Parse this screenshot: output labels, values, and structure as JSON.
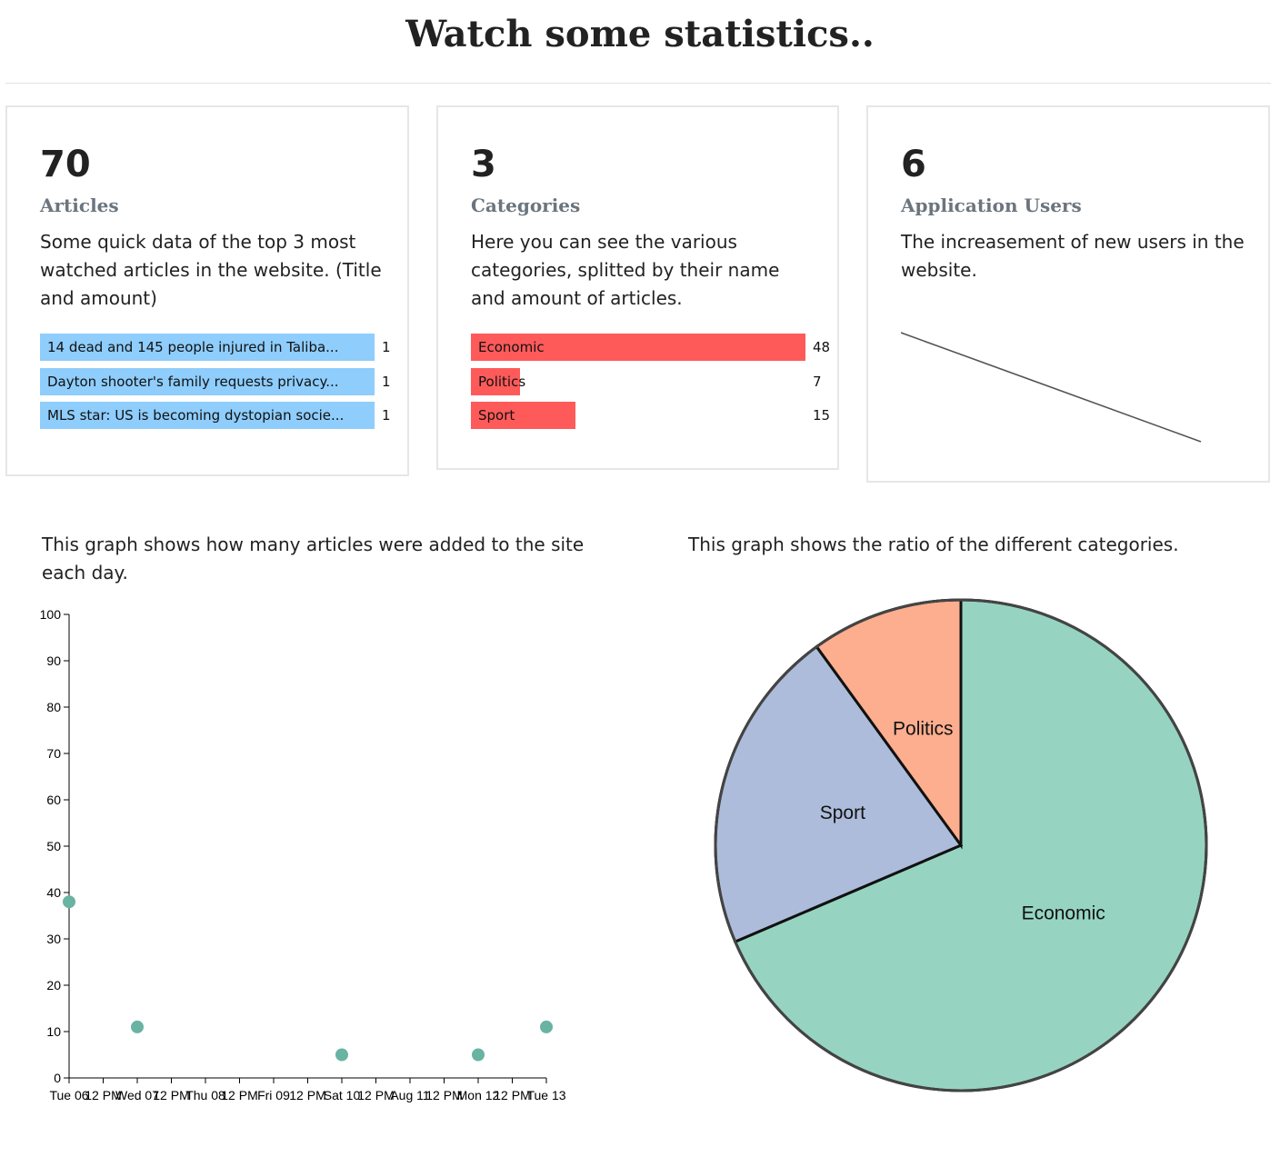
{
  "page": {
    "title": "Watch some statistics.."
  },
  "cards": [
    {
      "number": "70",
      "label": "Articles",
      "description": "Some quick data of the top 3 most watched articles in the website. (Title and amount)",
      "bars": [
        {
          "label": "14 dead and 145 people injured in Taliba...",
          "value": 1
        },
        {
          "label": "Dayton shooter's family requests privacy...",
          "value": 1
        },
        {
          "label": "MLS star: US is becoming dystopian socie...",
          "value": 1
        }
      ],
      "bar_color": "#8ecdfc"
    },
    {
      "number": "3",
      "label": "Categories",
      "description": "Here you can see the various categories, splitted by their name and amount of articles.",
      "bars": [
        {
          "label": "Economic",
          "value": 48
        },
        {
          "label": "Politics",
          "value": 7
        },
        {
          "label": "Sport",
          "value": 15
        }
      ],
      "bar_color": "#ff5a5a"
    },
    {
      "number": "6",
      "label": "Application Users",
      "description": "The increasement of new users in the website."
    }
  ],
  "graphs": {
    "scatter_desc": "This graph shows how many articles were added to the site each day.",
    "pie_desc": "This graph shows the ratio of the different categories."
  },
  "chart_data": [
    {
      "type": "bar",
      "orientation": "horizontal",
      "categories": [
        "14 dead and 145 people injured in Taliba...",
        "Dayton shooter's family requests privacy...",
        "MLS star: US is becoming dystopian socie..."
      ],
      "values": [
        1,
        1,
        1
      ]
    },
    {
      "type": "bar",
      "orientation": "horizontal",
      "categories": [
        "Economic",
        "Politics",
        "Sport"
      ],
      "values": [
        48,
        7,
        15
      ]
    },
    {
      "type": "line",
      "values": [
        6,
        1
      ],
      "axes_visible": false,
      "color": "#555555"
    },
    {
      "type": "scatter",
      "ylim": [
        0,
        100
      ],
      "yticks": [
        "0",
        "10",
        "20",
        "30",
        "40",
        "50",
        "60",
        "70",
        "80",
        "90",
        "100"
      ],
      "xticks": [
        "Tue 06",
        "12 PM",
        "Wed 07",
        "12 PM",
        "Thu 08",
        "12 PM",
        "Fri 09",
        "12 PM",
        "Sat 10",
        "12 PM",
        "Aug 11",
        "12 PM",
        "Mon 12",
        "12 PM",
        "Tue 13"
      ],
      "points": [
        {
          "x": "Tue 06",
          "y": 38
        },
        {
          "x": "Wed 07",
          "y": 11
        },
        {
          "x": "Sat 10",
          "y": 5
        },
        {
          "x": "Mon 12",
          "y": 5
        },
        {
          "x": "Tue 13",
          "y": 11
        }
      ],
      "color": "#69b3a2"
    },
    {
      "type": "pie",
      "slices": [
        {
          "label": "Economic",
          "value": 48,
          "color": "#96d4c1"
        },
        {
          "label": "Sport",
          "value": 15,
          "color": "#adbcda"
        },
        {
          "label": "Politics",
          "value": 7,
          "color": "#fcae8e"
        }
      ]
    }
  ]
}
